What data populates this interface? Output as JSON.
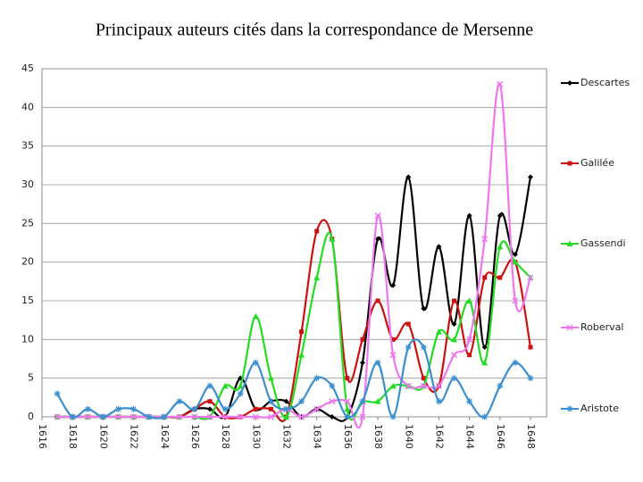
{
  "chart_data": {
    "type": "line",
    "title": "Principaux auteurs cités dans la correspondance de Mersenne",
    "x": [
      1617,
      1618,
      1619,
      1620,
      1621,
      1622,
      1623,
      1624,
      1625,
      1626,
      1627,
      1628,
      1629,
      1630,
      1631,
      1632,
      1633,
      1634,
      1635,
      1636,
      1637,
      1638,
      1639,
      1640,
      1641,
      1642,
      1643,
      1644,
      1645,
      1646,
      1647,
      1648
    ],
    "series": [
      {
        "name": "Descartes",
        "color": "#000000",
        "marker": "diamond",
        "values": [
          0,
          0,
          0,
          0,
          0,
          0,
          0,
          0,
          0,
          1,
          1,
          0,
          5,
          1,
          2,
          2,
          0,
          1,
          0,
          0,
          7,
          23,
          17,
          31,
          14,
          22,
          12,
          26,
          9,
          26,
          21,
          31
        ]
      },
      {
        "name": "Galilée",
        "color": "#cc1111",
        "marker": "square",
        "values": [
          0,
          0,
          0,
          0,
          0,
          0,
          0,
          0,
          0,
          1,
          2,
          0,
          0,
          1,
          1,
          0,
          11,
          24,
          23,
          5,
          10,
          15,
          10,
          12,
          5,
          4,
          15,
          8,
          18,
          18,
          20,
          9
        ]
      },
      {
        "name": "Gassendi",
        "color": "#22dd22",
        "marker": "triangle",
        "values": [
          0,
          0,
          0,
          0,
          0,
          0,
          0,
          0,
          0,
          0,
          0,
          4,
          4,
          13,
          5,
          0,
          8,
          18,
          23,
          1,
          2,
          2,
          4,
          4,
          4,
          11,
          10,
          15,
          7,
          22,
          20,
          18
        ]
      },
      {
        "name": "Roberval",
        "color": "#ee77ee",
        "marker": "cross",
        "values": [
          0,
          0,
          0,
          0,
          0,
          0,
          0,
          0,
          0,
          0,
          0,
          0,
          0,
          0,
          0,
          1,
          0,
          1,
          2,
          2,
          0,
          26,
          8,
          4,
          4,
          4,
          8,
          10,
          23,
          43,
          15,
          18
        ]
      },
      {
        "name": "Aristote",
        "color": "#3a8fd0",
        "marker": "star",
        "values": [
          3,
          0,
          1,
          0,
          1,
          1,
          0,
          0,
          2,
          1,
          4,
          1,
          3,
          7,
          2,
          1,
          2,
          5,
          4,
          0,
          2,
          7,
          0,
          9,
          9,
          2,
          5,
          2,
          0,
          4,
          7,
          5
        ]
      }
    ],
    "xlim": [
      1616,
      1648
    ],
    "xticks": [
      1616,
      1618,
      1620,
      1622,
      1624,
      1626,
      1628,
      1630,
      1632,
      1634,
      1636,
      1638,
      1640,
      1642,
      1644,
      1646,
      1648
    ],
    "ylim": [
      0,
      45
    ],
    "yticks": [
      0,
      5,
      10,
      15,
      20,
      25,
      30,
      35,
      40,
      45
    ],
    "grid": true,
    "legend": "right"
  }
}
